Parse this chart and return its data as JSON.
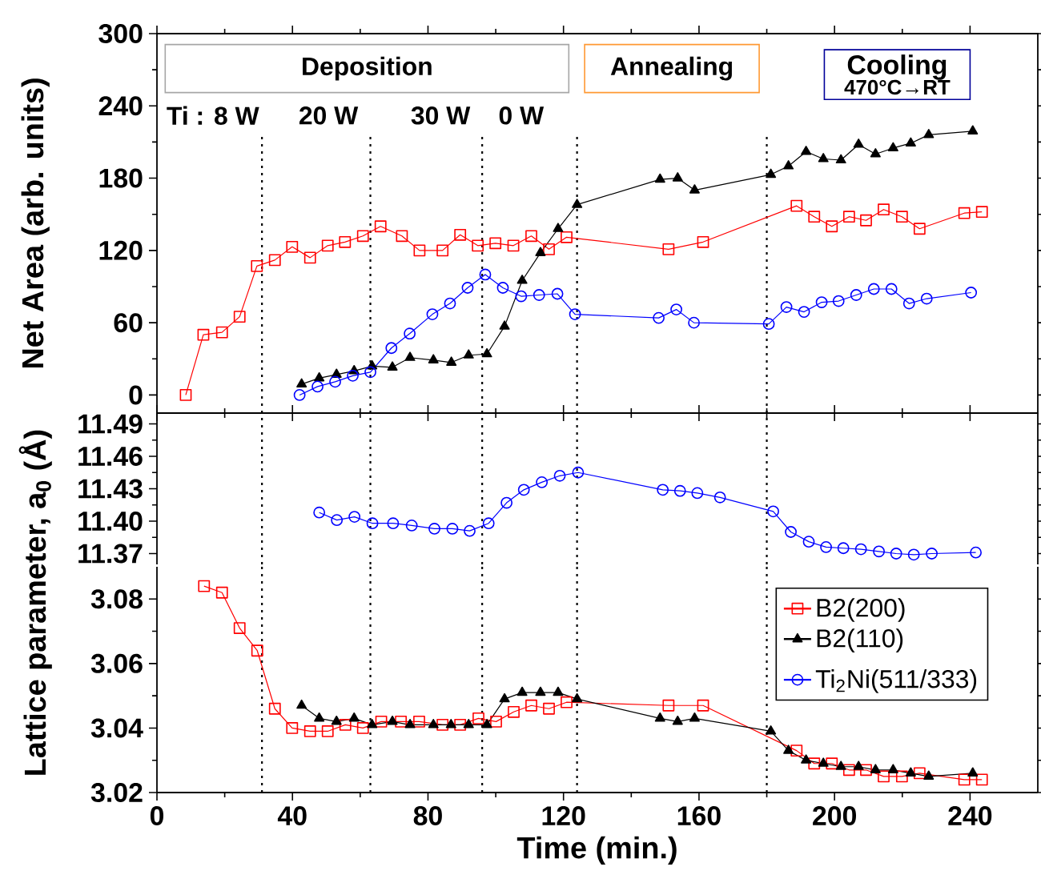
{
  "chart_data": [
    {
      "type": "line",
      "ylabel": "Net Area (arb. units)",
      "xlim": [
        0,
        260
      ],
      "xticks": [
        0,
        40,
        80,
        120,
        160,
        200,
        240
      ],
      "ylim": [
        -15,
        300
      ],
      "yticks": [
        0,
        60,
        120,
        180,
        240,
        300
      ],
      "tick_labels": "y",
      "line_style": "solid",
      "annotations": [
        "Deposition",
        "Annealing",
        "Cooling",
        "470°C→RT",
        "Ti : 8 W",
        "20 W",
        "30 W",
        "0 W"
      ],
      "ref_lines": [
        {
          "axis": "x",
          "value": 31,
          "color": "#000000",
          "line_style": "dotted"
        },
        {
          "axis": "x",
          "value": 63,
          "color": "#000000",
          "line_style": "dotted"
        },
        {
          "axis": "x",
          "value": 96,
          "color": "#000000",
          "line_style": "dotted"
        },
        {
          "axis": "x",
          "value": 124,
          "color": "#000000",
          "line_style": "dotted"
        },
        {
          "axis": "x",
          "value": 180,
          "color": "#000000",
          "line_style": "dotted"
        }
      ],
      "series": [
        {
          "color": "#ff0000",
          "marker": "square",
          "x": [
            8.5,
            13.7,
            19.2,
            24.4,
            29.5,
            34.8,
            39.9,
            45.2,
            50.4,
            55.5,
            60.8,
            66,
            72.3,
            77.5,
            84.3,
            89.5,
            94.7,
            99.9,
            105.2,
            110.5,
            115.7,
            120.9,
            151,
            161.2,
            188.8,
            194,
            199.2,
            204.3,
            209.3,
            214.5,
            219.9,
            225.1,
            238.3,
            243.5
          ],
          "values": [
            0,
            50,
            52,
            65,
            107,
            112,
            123,
            114,
            124,
            127,
            132,
            140,
            132,
            120,
            120,
            133,
            124,
            126,
            124,
            132,
            121,
            131,
            121,
            127,
            157,
            148,
            140,
            148,
            145,
            154,
            148,
            138,
            151,
            152
          ]
        },
        {
          "color": "#000000",
          "marker": "triangle",
          "x": [
            42.7,
            47.9,
            53,
            58.2,
            63.5,
            69.5,
            74.7,
            81.6,
            86.9,
            92,
            97.4,
            102.6,
            107.8,
            113.2,
            118.4,
            124,
            148.5,
            153.7,
            158.7,
            181.2,
            186.4,
            191.6,
            196.7,
            201.9,
            207.1,
            212.1,
            217.3,
            222.5,
            227.8,
            240.8
          ],
          "values": [
            9,
            14,
            17,
            20,
            24,
            23,
            31,
            29,
            27,
            33,
            34,
            57,
            95,
            118,
            138,
            158,
            179,
            180,
            170,
            183,
            190,
            202,
            196,
            195,
            208,
            200,
            205,
            209,
            216,
            219
          ]
        },
        {
          "color": "#0000ff",
          "marker": "circle",
          "x": [
            42.1,
            47.4,
            52.6,
            57.8,
            63,
            69.2,
            74.6,
            81.3,
            86.5,
            91.7,
            96.9,
            102.1,
            107.5,
            112.8,
            118.2,
            123.4,
            148.1,
            153.3,
            158.5,
            180.6,
            185.8,
            191,
            196.2,
            201.2,
            206.4,
            211.6,
            216.8,
            222,
            227.2,
            240.3
          ],
          "values": [
            0,
            7,
            11,
            16,
            19,
            39,
            51,
            67,
            76,
            89,
            100,
            89,
            82,
            83,
            84,
            67,
            64,
            71,
            60,
            59,
            73,
            69,
            77,
            78,
            83,
            88,
            88,
            76,
            80,
            85
          ]
        }
      ]
    },
    {
      "type": "line",
      "xlim": [
        0,
        260
      ],
      "xticks": [
        0,
        40,
        80,
        120,
        160,
        200,
        240
      ],
      "ylim": [
        11.36,
        11.5
      ],
      "yticks": [
        11.37,
        {
          "value": 11.4,
          "label": "11.40"
        },
        11.43,
        11.46,
        11.49
      ],
      "tick_labels": "y",
      "line_style": "solid",
      "ref_lines": [
        {
          "axis": "x",
          "value": 31,
          "color": "#000000",
          "line_style": "dotted"
        },
        {
          "axis": "x",
          "value": 63,
          "color": "#000000",
          "line_style": "dotted"
        },
        {
          "axis": "x",
          "value": 96,
          "color": "#000000",
          "line_style": "dotted"
        },
        {
          "axis": "x",
          "value": 124,
          "color": "#000000",
          "line_style": "dotted"
        },
        {
          "axis": "x",
          "value": 180,
          "color": "#000000",
          "line_style": "dotted"
        }
      ],
      "series": [
        {
          "name": "Ti$_{2}$Ni(511/333)",
          "color": "#0000ff",
          "marker": "circle",
          "x": [
            47.9,
            53.1,
            58.3,
            63.6,
            69.7,
            75.2,
            81.9,
            87.2,
            92.3,
            97.9,
            103.2,
            108.3,
            113.6,
            118.9,
            124.3,
            149.3,
            154.4,
            159.5,
            166.2,
            181.9,
            187.1,
            192.4,
            197.5,
            202.6,
            207.8,
            213.1,
            218.2,
            223.4,
            228.7,
            241.7
          ],
          "values": [
            11.408,
            11.401,
            11.404,
            11.398,
            11.398,
            11.396,
            11.393,
            11.393,
            11.391,
            11.398,
            11.417,
            11.429,
            11.436,
            11.442,
            11.445,
            11.429,
            11.428,
            11.426,
            11.422,
            11.409,
            11.39,
            11.381,
            11.376,
            11.375,
            11.374,
            11.372,
            11.37,
            11.369,
            11.37,
            11.371
          ]
        }
      ]
    },
    {
      "type": "line",
      "xlabel": "Time (min.)",
      "ylabel": "Lattice parameter, a$_{0}$ (Å)",
      "xlim": [
        0,
        260
      ],
      "xticks": [
        0,
        40,
        80,
        120,
        160,
        200,
        240
      ],
      "ylim": [
        3.02,
        3.09
      ],
      "yticks": [
        3.02,
        3.04,
        3.06,
        3.08
      ],
      "legend": "top right",
      "line_style": "solid",
      "ref_lines": [
        {
          "axis": "x",
          "value": 31,
          "color": "#000000",
          "line_style": "dotted"
        },
        {
          "axis": "x",
          "value": 63,
          "color": "#000000",
          "line_style": "dotted"
        },
        {
          "axis": "x",
          "value": 96,
          "color": "#000000",
          "line_style": "dotted"
        },
        {
          "axis": "x",
          "value": 124,
          "color": "#000000",
          "line_style": "dotted"
        },
        {
          "axis": "x",
          "value": 180,
          "color": "#000000",
          "line_style": "dotted"
        }
      ],
      "series": [
        {
          "name": "B2(200)",
          "color": "#ff0000",
          "marker": "square",
          "x": [
            13.9,
            19.2,
            24.4,
            29.6,
            34.8,
            39.9,
            45.2,
            50.4,
            55.6,
            60.8,
            66.2,
            72,
            77.4,
            84.3,
            89.5,
            94.9,
            100.1,
            105.3,
            110.5,
            115.7,
            120.9,
            151,
            161.2,
            188.8,
            194,
            199.2,
            204.3,
            209.3,
            214.5,
            219.9,
            225.1,
            238.3,
            243.5
          ],
          "values": [
            3.084,
            3.082,
            3.071,
            3.064,
            3.046,
            3.04,
            3.039,
            3.039,
            3.041,
            3.04,
            3.042,
            3.042,
            3.042,
            3.041,
            3.041,
            3.043,
            3.042,
            3.045,
            3.047,
            3.046,
            3.048,
            3.047,
            3.047,
            3.033,
            3.029,
            3.029,
            3.027,
            3.027,
            3.025,
            3.025,
            3.026,
            3.024,
            3.024
          ]
        },
        {
          "name": "B2(110)",
          "color": "#000000",
          "marker": "triangle",
          "x": [
            42.7,
            47.9,
            53,
            58.2,
            63.5,
            69.5,
            74.7,
            81.6,
            86.8,
            92,
            97.4,
            102.6,
            107.8,
            113.2,
            118.4,
            124,
            148.5,
            153.7,
            158.7,
            181.2,
            186.4,
            191.6,
            196.7,
            201.9,
            207.1,
            212.1,
            217.3,
            222.5,
            227.8,
            240.8
          ],
          "values": [
            3.047,
            3.043,
            3.042,
            3.043,
            3.041,
            3.042,
            3.041,
            3.041,
            3.041,
            3.041,
            3.041,
            3.049,
            3.051,
            3.051,
            3.051,
            3.049,
            3.043,
            3.042,
            3.043,
            3.039,
            3.033,
            3.03,
            3.029,
            3.028,
            3.028,
            3.027,
            3.027,
            3.026,
            3.025,
            3.026
          ]
        }
      ]
    }
  ]
}
